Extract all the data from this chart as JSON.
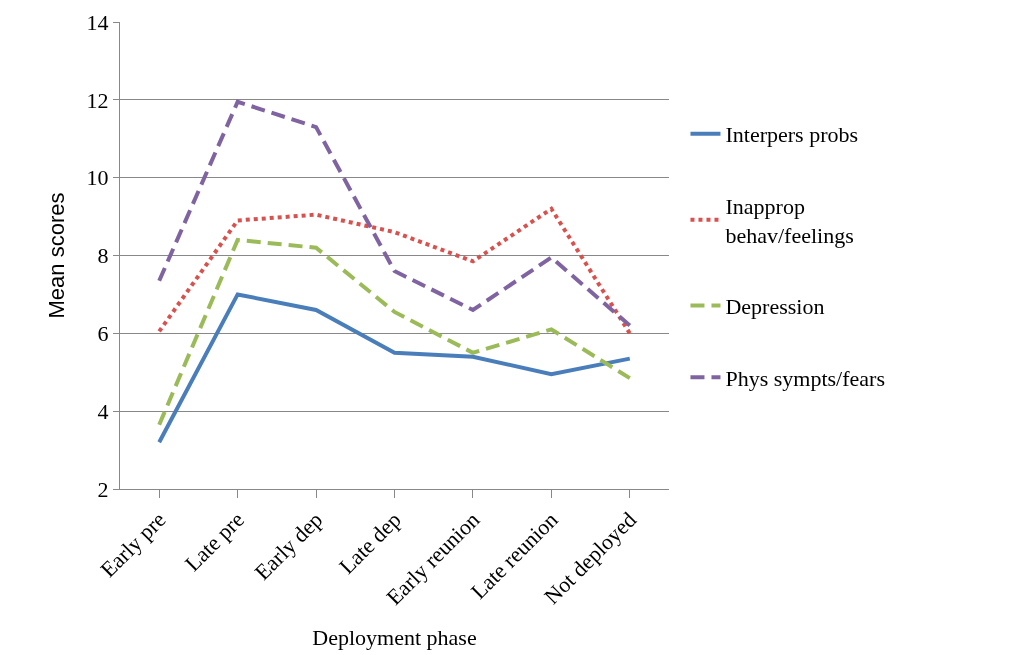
{
  "chart_data": {
    "type": "line",
    "xlabel": "Deployment phase",
    "ylabel": "Mean scores",
    "categories": [
      "Early pre",
      "Late pre",
      "Early dep",
      "Late dep",
      "Early reunion",
      "Late reunion",
      "Not deployed"
    ],
    "series": [
      {
        "name": "Interpers probs",
        "color": "#4a7ebb",
        "line_style": "solid",
        "values": [
          3.2,
          7.0,
          6.6,
          5.5,
          5.4,
          4.95,
          5.35
        ]
      },
      {
        "name": "Inapprop behav/feelings",
        "color": "#d9514e",
        "line_style": "dotted",
        "values": [
          6.05,
          8.9,
          9.05,
          8.6,
          7.85,
          9.2,
          6.0
        ]
      },
      {
        "name": "Depression",
        "color": "#9bbb59",
        "line_style": "dashed",
        "values": [
          3.65,
          8.4,
          8.2,
          6.55,
          5.5,
          6.1,
          4.85
        ]
      },
      {
        "name": "Phys sympts/fears",
        "color": "#8064a2",
        "line_style": "dashed",
        "values": [
          7.35,
          11.95,
          11.3,
          7.6,
          6.6,
          7.95,
          6.2
        ]
      }
    ],
    "ylim": [
      2,
      14
    ],
    "yticks": [
      2,
      4,
      6,
      8,
      10,
      12,
      14
    ],
    "grid": "y",
    "legend": "right",
    "marker": "none"
  }
}
